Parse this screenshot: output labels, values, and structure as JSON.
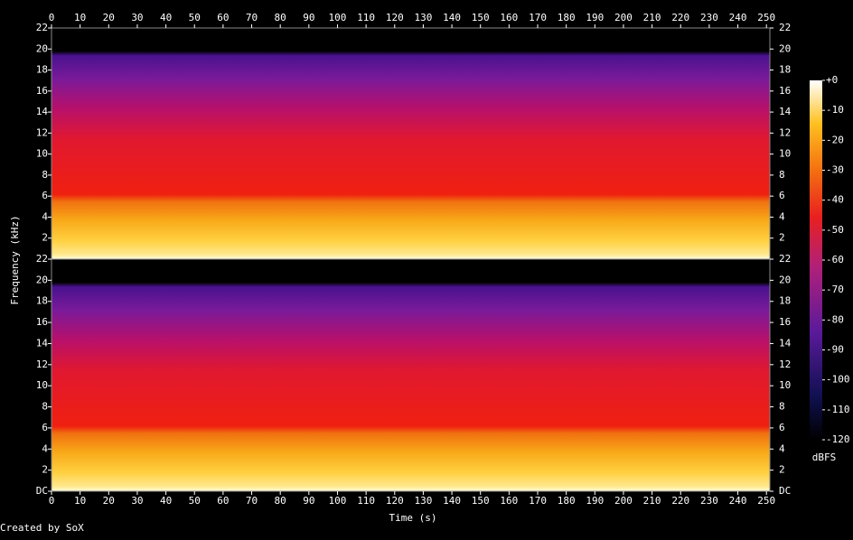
{
  "chart_data": {
    "type": "spectrogram",
    "x_label": "Time (s)",
    "y_label": "Frequency (kHz)",
    "colorbar_label": "dBFS",
    "footer": "Created by SoX",
    "xlim": [
      0,
      251.2
    ],
    "xticks": [
      0,
      10,
      20,
      30,
      40,
      50,
      60,
      70,
      80,
      90,
      100,
      110,
      120,
      130,
      140,
      150,
      160,
      170,
      180,
      190,
      200,
      210,
      220,
      230,
      240,
      250
    ],
    "ylim": [
      0,
      22
    ],
    "yticks": [
      {
        "value": 0,
        "label": "DC"
      },
      2,
      4,
      6,
      8,
      10,
      12,
      14,
      16,
      18,
      20,
      22
    ],
    "clim": [
      -120,
      0
    ],
    "cticks": [
      {
        "value": 0,
        "label": "+0"
      },
      -10,
      -20,
      -30,
      -40,
      -50,
      -60,
      -70,
      -80,
      -90,
      -100,
      -110,
      -120
    ]
  }
}
